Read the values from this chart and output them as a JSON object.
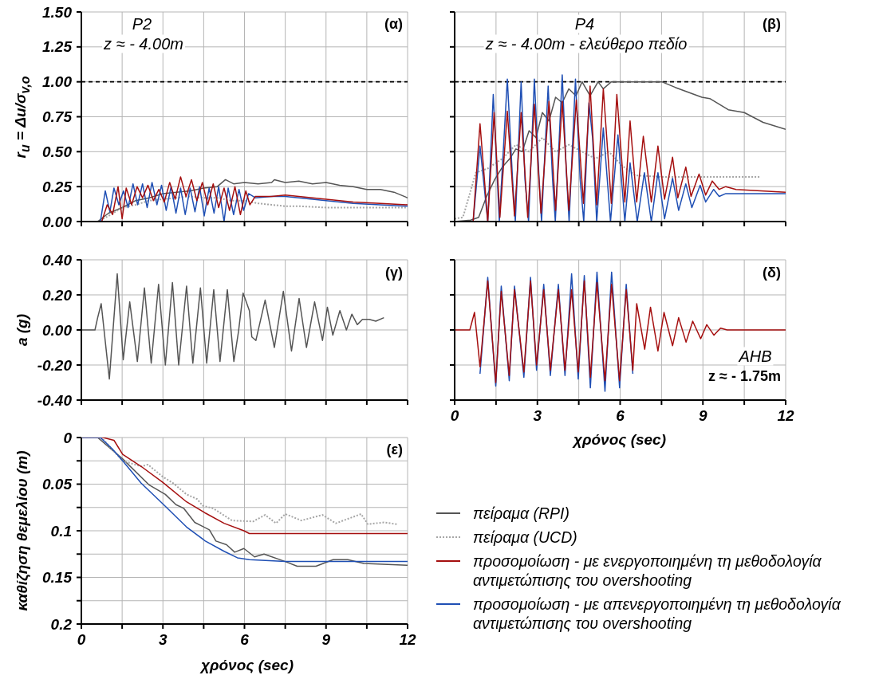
{
  "chart_data": [
    {
      "type": "line",
      "ylabel": "r$_{u}$ = Δu/σ$_{v,o}$",
      "annotations": [
        "P2",
        "z ≈ - 4.00m",
        "(α)"
      ],
      "xlim": [
        0,
        12
      ],
      "ylim": [
        0,
        1.5
      ],
      "xticks": [
        0,
        {
          "value": 1.5,
          "label": null
        },
        3,
        {
          "value": 4.5,
          "label": null
        },
        6,
        {
          "value": 7.5,
          "label": null
        },
        9,
        {
          "value": 10.5,
          "label": null
        },
        12
      ],
      "yticks": [
        {
          "value": 0,
          "label": "0.00"
        },
        0.25,
        {
          "value": 0.5,
          "label": "0.50"
        },
        0.75,
        {
          "value": 1,
          "label": "1.00"
        },
        1.25,
        {
          "value": 1.5,
          "label": "1.50"
        }
      ],
      "tick_labels": "y",
      "grid": true,
      "ref_lines": [
        {
          "axis": "y",
          "value": 1,
          "color": "#000000",
          "line_style": "dashed"
        }
      ],
      "series": [
        {
          "color": "#555555",
          "x": [
            0,
            0.6,
            1.0,
            1.5,
            2.0,
            2.5,
            3.0,
            3.5,
            4.0,
            4.5,
            5.0,
            5.3,
            5.6,
            6.0,
            6.5,
            7.0,
            7.1,
            7.5,
            8.0,
            8.5,
            9.0,
            9.5,
            10.0,
            10.5,
            11.0,
            11.5,
            12.0
          ],
          "values": [
            0,
            0,
            0.06,
            0.1,
            0.15,
            0.17,
            0.2,
            0.21,
            0.22,
            0.24,
            0.25,
            0.3,
            0.27,
            0.28,
            0.27,
            0.28,
            0.3,
            0.28,
            0.29,
            0.27,
            0.28,
            0.26,
            0.25,
            0.23,
            0.23,
            0.21,
            0.17
          ]
        },
        {
          "color": "#a6a6a6",
          "line_style": "dotted",
          "x": [
            0,
            0.6,
            1.0,
            1.5,
            2.0,
            2.5,
            3.0,
            3.5,
            4.0,
            4.5,
            5.0,
            5.5,
            6.0,
            6.5,
            7.0,
            7.5,
            8.0,
            9.0,
            10.0,
            11.0,
            12.0
          ],
          "values": [
            0,
            0,
            0.04,
            0.1,
            0.12,
            0.15,
            0.16,
            0.17,
            0.18,
            0.17,
            0.17,
            0.15,
            0.15,
            0.13,
            0.12,
            0.11,
            0.11,
            0.1,
            0.1,
            0.1,
            0.1
          ]
        },
        {
          "color": "#1f4fb4",
          "x": [
            0,
            0.7,
            0.88,
            1.05,
            1.2,
            1.38,
            1.55,
            1.72,
            1.9,
            2.07,
            2.25,
            2.42,
            2.6,
            2.78,
            2.95,
            3.12,
            3.3,
            3.48,
            3.65,
            3.82,
            4.0,
            4.18,
            4.35,
            4.52,
            4.7,
            4.88,
            5.05,
            5.25,
            5.4,
            5.6,
            5.8,
            5.97,
            6.15,
            6.4,
            7.0,
            7.5,
            8.5,
            10.0,
            12.0
          ],
          "values": [
            0,
            0,
            0.22,
            0.07,
            0.24,
            0.12,
            0.22,
            0.1,
            0.27,
            0.12,
            0.27,
            0.1,
            0.28,
            0.12,
            0.26,
            0.08,
            0.25,
            0.06,
            0.24,
            0.05,
            0.24,
            0.07,
            0.25,
            0.04,
            0.24,
            0.06,
            0.25,
            0,
            0.24,
            0.05,
            0.23,
            0.08,
            0.2,
            0.17,
            0.18,
            0.18,
            0.16,
            0.13,
            0.11
          ]
        },
        {
          "color": "#a50f0f",
          "x": [
            0,
            0.75,
            0.95,
            1.15,
            1.35,
            1.5,
            1.65,
            1.85,
            2.05,
            2.25,
            2.45,
            2.65,
            2.85,
            3.05,
            3.25,
            3.45,
            3.65,
            3.85,
            4.05,
            4.25,
            4.45,
            4.65,
            4.85,
            5.05,
            5.25,
            5.45,
            5.65,
            5.85,
            6.05,
            6.2,
            6.4,
            7.0,
            7.5,
            8.5,
            10.0,
            12.0
          ],
          "values": [
            0,
            0,
            0.12,
            0.05,
            0.25,
            0.02,
            0.24,
            0.12,
            0.25,
            0.17,
            0.26,
            0.15,
            0.23,
            0.14,
            0.28,
            0.16,
            0.32,
            0.18,
            0.3,
            0.15,
            0.28,
            0.12,
            0.27,
            0.1,
            0.24,
            0.08,
            0.25,
            0.05,
            0.22,
            0.12,
            0.18,
            0.18,
            0.19,
            0.17,
            0.14,
            0.12
          ]
        }
      ]
    },
    {
      "type": "line",
      "annotations": [
        "P4",
        "z ≈ - 4.00m - ελεύθερο πεδίο",
        "(β)"
      ],
      "xlim": [
        0,
        12
      ],
      "ylim": [
        0,
        1.5
      ],
      "xticks": [
        0,
        1.5,
        3,
        4.5,
        6,
        7.5,
        9,
        10.5,
        12
      ],
      "yticks": [
        0,
        0.25,
        0.5,
        0.75,
        1,
        1.25,
        1.5
      ],
      "tick_labels": false,
      "grid": true,
      "ref_lines": [
        {
          "axis": "y",
          "value": 1,
          "color": "#000000",
          "line_style": "dashed"
        }
      ],
      "series": [
        {
          "color": "#555555",
          "x": [
            0,
            0.58,
            0.87,
            1.16,
            1.45,
            1.73,
            2.0,
            2.22,
            2.45,
            2.7,
            2.95,
            3.18,
            3.42,
            3.66,
            3.9,
            4.14,
            4.4,
            4.62,
            4.91,
            5.2,
            5.39,
            5.68,
            7.51,
            8.0,
            8.96,
            9.25,
            9.92,
            10.5,
            11.18,
            12.0
          ],
          "values": [
            0,
            0.01,
            0.03,
            0.18,
            0.3,
            0.39,
            0.45,
            0.52,
            0.5,
            0.65,
            0.6,
            0.78,
            0.72,
            0.89,
            0.85,
            0.95,
            0.9,
            1.0,
            0.9,
            1.0,
            0.95,
            1.0,
            1.0,
            0.96,
            0.89,
            0.88,
            0.8,
            0.78,
            0.71,
            0.66
          ]
        },
        {
          "color": "#a6a6a6",
          "line_style": "dotted",
          "x": [
            0,
            0.3,
            0.77,
            1.2,
            1.73,
            2.22,
            2.7,
            3.18,
            3.66,
            4.14,
            5.1,
            5.59,
            6.07,
            6.55,
            7.5,
            11.1
          ],
          "values": [
            0.02,
            0.03,
            0.35,
            0.38,
            0.45,
            0.55,
            0.5,
            0.6,
            0.5,
            0.55,
            0.45,
            0.5,
            0.4,
            0.33,
            0.32,
            0.32
          ]
        },
        {
          "color": "#1f4fb4",
          "x": [
            0,
            0.67,
            0.92,
            1.2,
            1.4,
            1.62,
            1.91,
            2.1,
            2.2,
            2.41,
            2.55,
            2.68,
            2.89,
            3.05,
            3.15,
            3.39,
            3.55,
            3.65,
            3.9,
            4.05,
            4.15,
            4.38,
            4.55,
            4.68,
            4.87,
            5.0,
            5.15,
            5.39,
            5.65,
            5.92,
            6.17,
            6.36,
            6.62,
            6.88,
            7.13,
            7.37,
            7.61,
            7.9,
            8.12,
            8.38,
            8.6,
            8.9,
            9.1,
            9.39,
            9.59,
            9.83,
            12.0
          ],
          "values": [
            0,
            0,
            0.54,
            0,
            0.91,
            0,
            1.02,
            0.3,
            0,
            1.0,
            0.3,
            0,
            1.02,
            0.35,
            0,
            0.97,
            0.3,
            0,
            1.05,
            0.35,
            0,
            1.02,
            0.3,
            0,
            0.85,
            0.6,
            0,
            0.67,
            0,
            0.62,
            0,
            0.42,
            0,
            0.35,
            0,
            0.35,
            0.02,
            0.31,
            0.08,
            0.27,
            0.1,
            0.26,
            0.14,
            0.23,
            0.18,
            0.2,
            0.2
          ]
        },
        {
          "color": "#a50f0f",
          "x": [
            0,
            0.67,
            0.92,
            1.2,
            1.43,
            1.64,
            1.91,
            2.17,
            2.41,
            2.65,
            2.89,
            3.13,
            3.42,
            3.66,
            3.9,
            4.14,
            4.41,
            4.67,
            4.91,
            5.15,
            5.39,
            5.68,
            5.88,
            6.17,
            6.36,
            6.6,
            6.84,
            7.13,
            7.37,
            7.61,
            7.9,
            8.09,
            8.38,
            8.57,
            8.86,
            9.1,
            9.34,
            9.59,
            9.83,
            10.2,
            12.0
          ],
          "values": [
            0,
            0,
            0.7,
            0,
            0.78,
            0.03,
            0.79,
            0.04,
            0.78,
            0.03,
            0.84,
            0.06,
            0.86,
            0.08,
            0.86,
            0.08,
            0.87,
            0.13,
            0.97,
            0.12,
            0.95,
            0.13,
            0.91,
            0.14,
            0.72,
            0.14,
            0.61,
            0.14,
            0.54,
            0.16,
            0.46,
            0.17,
            0.39,
            0.18,
            0.34,
            0.19,
            0.29,
            0.23,
            0.25,
            0.23,
            0.21
          ]
        }
      ]
    },
    {
      "type": "line",
      "ylabel": "a (g)",
      "annotations": [
        "(γ)"
      ],
      "xlim": [
        0,
        12
      ],
      "ylim": [
        -0.4,
        0.4
      ],
      "xticks": [
        0,
        {
          "value": 1.5,
          "label": null
        },
        3,
        {
          "value": 4.5,
          "label": null
        },
        6,
        {
          "value": 7.5,
          "label": null
        },
        9,
        {
          "value": 10.5,
          "label": null
        },
        12
      ],
      "yticks": [
        {
          "value": -0.4,
          "label": "-0.40"
        },
        {
          "value": -0.2,
          "label": "-0.20"
        },
        {
          "value": 0,
          "label": "0.00"
        },
        {
          "value": 0.2,
          "label": "0.20"
        },
        {
          "value": 0.4,
          "label": "0.40"
        }
      ],
      "tick_labels": "y",
      "grid": true,
      "series": [
        {
          "color": "#555555",
          "x": [
            0,
            0.5,
            0.6,
            0.73,
            0.98,
            1.03,
            1.32,
            1.54,
            1.78,
            2.06,
            2.32,
            2.57,
            2.84,
            3.09,
            3.35,
            3.58,
            3.87,
            4.1,
            4.38,
            4.61,
            4.87,
            5.1,
            5.37,
            5.61,
            5.78,
            5.95,
            6.18,
            6.27,
            6.42,
            6.76,
            7.1,
            7.43,
            7.73,
            8.01,
            8.28,
            8.58,
            8.87,
            9.05,
            9.25,
            9.51,
            9.75,
            9.95,
            10.15,
            10.34,
            10.59,
            10.83,
            11.13
          ],
          "values": [
            0,
            0,
            0.07,
            0.15,
            -0.21,
            -0.28,
            0.32,
            -0.17,
            0.16,
            -0.18,
            0.24,
            -0.19,
            0.26,
            -0.2,
            0.27,
            -0.2,
            0.25,
            -0.19,
            0.24,
            -0.19,
            0.23,
            -0.18,
            0.23,
            -0.18,
            -0.01,
            0.21,
            0.11,
            -0.04,
            -0.06,
            0.17,
            -0.1,
            0.22,
            -0.12,
            0.18,
            -0.1,
            0.16,
            -0.06,
            0.13,
            -0.03,
            0.11,
            0,
            0.09,
            0.03,
            0.06,
            0.06,
            0.05,
            0.07
          ]
        }
      ]
    },
    {
      "type": "line",
      "xlabel": "χρόνος (sec)",
      "annotations": [
        "(δ)",
        "AHB",
        "z ≈ - 1.75m"
      ],
      "xlim": [
        0,
        12
      ],
      "ylim": [
        -0.4,
        0.4
      ],
      "xticks": [
        0,
        {
          "value": 1.5,
          "label": null
        },
        3,
        {
          "value": 4.5,
          "label": null
        },
        6,
        {
          "value": 7.5,
          "label": null
        },
        9,
        {
          "value": 10.5,
          "label": null
        },
        12
      ],
      "yticks": [
        -0.4,
        -0.2,
        0,
        0.2,
        0.4
      ],
      "tick_labels": "x",
      "grid": true,
      "series": [
        {
          "color": "#1f4fb4",
          "x": [
            0.92,
            1.2,
            1.49,
            1.69,
            1.98,
            2.17,
            2.51,
            2.75,
            2.97,
            3.23,
            3.47,
            3.76,
            4.0,
            4.24,
            4.48,
            4.7,
            4.92,
            5.16,
            5.45,
            5.69,
            5.98,
            6.22,
            6.46
          ],
          "values": [
            -0.25,
            0.3,
            -0.32,
            0.25,
            -0.29,
            0.25,
            -0.27,
            0.3,
            -0.23,
            0.26,
            -0.26,
            0.26,
            -0.26,
            0.32,
            -0.28,
            0.31,
            -0.33,
            0.33,
            -0.35,
            0.33,
            -0.33,
            0.26,
            -0.25
          ]
        },
        {
          "color": "#a50f0f",
          "x": [
            0,
            0.55,
            0.72,
            0.92,
            1.2,
            1.49,
            1.69,
            1.98,
            2.17,
            2.51,
            2.75,
            2.97,
            3.23,
            3.47,
            3.76,
            4.0,
            4.24,
            4.48,
            4.7,
            4.92,
            5.16,
            5.45,
            5.69,
            5.98,
            6.22,
            6.46,
            6.6,
            6.89,
            7.1,
            7.37,
            7.59,
            7.9,
            8.12,
            8.39,
            8.63,
            8.92,
            9.14,
            9.4,
            9.64,
            9.88,
            12.0
          ],
          "values": [
            0,
            0,
            0.1,
            -0.21,
            0.28,
            -0.3,
            0.22,
            -0.26,
            0.23,
            -0.24,
            0.28,
            -0.2,
            0.23,
            -0.23,
            0.23,
            -0.23,
            0.23,
            -0.24,
            0.28,
            -0.27,
            0.27,
            -0.29,
            0.26,
            -0.29,
            0.23,
            -0.23,
            0.15,
            -0.11,
            0.13,
            -0.12,
            0.1,
            -0.09,
            0.07,
            -0.07,
            0.05,
            -0.05,
            0.03,
            -0.03,
            0.01,
            0,
            0
          ]
        }
      ]
    },
    {
      "type": "line",
      "xlabel": "χρόνος (sec)",
      "ylabel": "καθίζηση θεμελίου (m)",
      "annotations": [
        "(ε)"
      ],
      "xlim": [
        0,
        12
      ],
      "ylim": [
        0.2,
        0
      ],
      "xticks": [
        0,
        {
          "value": 1.5,
          "label": null
        },
        3,
        {
          "value": 4.5,
          "label": null
        },
        6,
        {
          "value": 7.5,
          "label": null
        },
        9,
        {
          "value": 10.5,
          "label": null
        },
        12
      ],
      "yticks": [
        0,
        {
          "value": 0.025,
          "label": null
        },
        0.05,
        {
          "value": 0.075,
          "label": null
        },
        0.1,
        {
          "value": 0.125,
          "label": null
        },
        0.15,
        {
          "value": 0.175,
          "label": null
        },
        0.2
      ],
      "grid": true,
      "legend": "right",
      "series": [
        {
          "name": "πείραμα (RPI)",
          "color": "#555555",
          "x": [
            0,
            0.6,
            1.52,
            2.5,
            3.09,
            3.48,
            3.77,
            4.17,
            4.71,
            4.95,
            5.34,
            5.64,
            5.98,
            6.37,
            6.72,
            7.5,
            7.94,
            8.63,
            9.26,
            9.8,
            10.39,
            12.0
          ],
          "values": [
            0,
            0,
            0.023,
            0.051,
            0.061,
            0.072,
            0.076,
            0.091,
            0.099,
            0.111,
            0.115,
            0.123,
            0.119,
            0.128,
            0.125,
            0.133,
            0.138,
            0.138,
            0.131,
            0.131,
            0.135,
            0.137
          ]
        },
        {
          "name": "πείραμα (UCD)",
          "color": "#a6a6a6",
          "line_style": "dotted",
          "x": [
            0,
            0.74,
            1.52,
            2.2,
            2.45,
            2.99,
            3.38,
            3.87,
            4.26,
            4.46,
            4.85,
            5.54,
            6.32,
            6.76,
            7.16,
            7.5,
            8.09,
            8.87,
            9.36,
            10.29,
            10.54,
            11.13,
            11.62
          ],
          "values": [
            0,
            0,
            0.025,
            0.031,
            0.029,
            0.042,
            0.049,
            0.061,
            0.066,
            0.073,
            0.076,
            0.089,
            0.09,
            0.083,
            0.092,
            0.082,
            0.089,
            0.083,
            0.092,
            0.082,
            0.093,
            0.091,
            0.093
          ]
        },
        {
          "name": "προσομοίωση - με ενεργοποιημένη τη μεθοδολογία αντιμετώπισης του overshooting",
          "color": "#a50f0f",
          "x": [
            0,
            0.8,
            1.2,
            1.52,
            2.2,
            2.99,
            3.87,
            4.56,
            5.25,
            5.98,
            6.18,
            12.0
          ],
          "values": [
            0,
            0,
            0.003,
            0.018,
            0.031,
            0.048,
            0.069,
            0.081,
            0.092,
            0.1,
            0.103,
            0.103
          ]
        },
        {
          "name": "προσομοίωση - με απενεργοποιημένη τη μεθοδολογία αντιμετώπισης του overshooting",
          "color": "#1f4fb4",
          "x": [
            0,
            0.7,
            1.13,
            1.52,
            2.2,
            2.99,
            3.87,
            4.56,
            5.25,
            5.74,
            6.18,
            7.5,
            12.0
          ],
          "values": [
            0,
            0,
            0.012,
            0.025,
            0.049,
            0.071,
            0.096,
            0.111,
            0.122,
            0.129,
            0.131,
            0.133,
            0.133
          ]
        }
      ]
    }
  ]
}
